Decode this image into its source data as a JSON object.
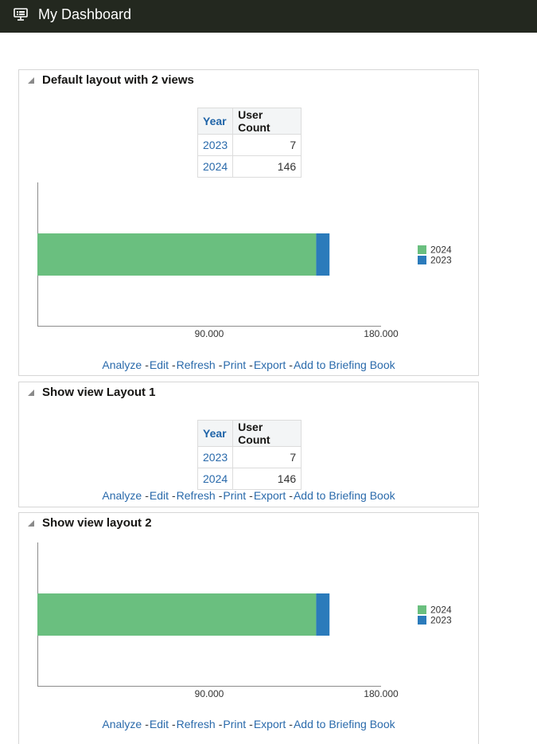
{
  "header": {
    "title": "My Dashboard",
    "icon": "dashboard-icon"
  },
  "colors": {
    "bar_2024": "#6abf7f",
    "bar_2023": "#2b7bbb",
    "link": "#2a6aab",
    "header_bg": "#23281f"
  },
  "sections": [
    {
      "title": "Default layout with 2 views",
      "table": {
        "headers": {
          "year": "Year",
          "count": "User Count"
        },
        "rows": [
          {
            "year": "2023",
            "count": "7"
          },
          {
            "year": "2024",
            "count": "146"
          }
        ]
      },
      "chart_data": {
        "type": "bar",
        "orientation": "horizontal-stacked",
        "categories": [
          ""
        ],
        "series": [
          {
            "name": "2024",
            "values": [
              146
            ]
          },
          {
            "name": "2023",
            "values": [
              7
            ]
          }
        ],
        "xlim": [
          0,
          180
        ],
        "xticks": [
          "90.000",
          "180.000"
        ],
        "legend_position": "right"
      },
      "links": [
        "Analyze",
        "Edit",
        "Refresh",
        "Print",
        "Export",
        "Add to Briefing Book"
      ]
    },
    {
      "title": "Show view Layout 1",
      "table": {
        "headers": {
          "year": "Year",
          "count": "User Count"
        },
        "rows": [
          {
            "year": "2023",
            "count": "7"
          },
          {
            "year": "2024",
            "count": "146"
          }
        ]
      },
      "links": [
        "Analyze",
        "Edit",
        "Refresh",
        "Print",
        "Export",
        "Add to Briefing Book"
      ]
    },
    {
      "title": "Show view layout 2",
      "chart_data": {
        "type": "bar",
        "orientation": "horizontal-stacked",
        "categories": [
          ""
        ],
        "series": [
          {
            "name": "2024",
            "values": [
              146
            ]
          },
          {
            "name": "2023",
            "values": [
              7
            ]
          }
        ],
        "xlim": [
          0,
          180
        ],
        "xticks": [
          "90.000",
          "180.000"
        ],
        "legend_position": "right"
      },
      "links": [
        "Analyze",
        "Edit",
        "Refresh",
        "Print",
        "Export",
        "Add to Briefing Book"
      ]
    }
  ]
}
